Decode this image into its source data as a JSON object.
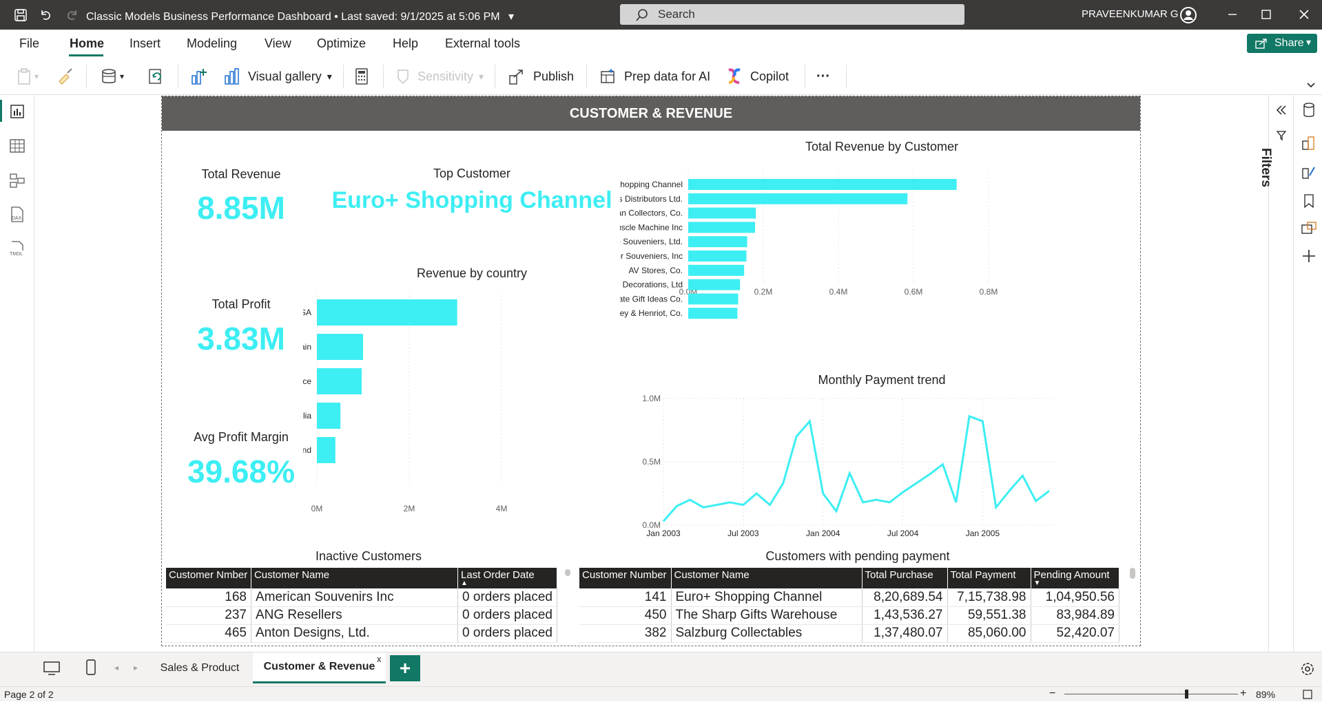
{
  "window": {
    "title": "Classic Models Business Performance Dashboard",
    "saved": "• Last saved: 9/1/2025 at 5:06 PM",
    "search_placeholder": "Search",
    "user": "PRAVEENKUMAR G"
  },
  "menu": [
    "File",
    "Home",
    "Insert",
    "Modeling",
    "View",
    "Optimize",
    "Help",
    "External tools"
  ],
  "share_label": "Share",
  "ribbon": {
    "visual_gallery": "Visual gallery",
    "sensitivity": "Sensitivity",
    "publish": "Publish",
    "prep_data": "Prep data for AI",
    "copilot": "Copilot",
    "more": "···"
  },
  "report": {
    "header": "CUSTOMER & REVENUE",
    "cards": {
      "revenue_label": "Total Revenue",
      "revenue_value": "8.85M",
      "profit_label": "Total Profit",
      "profit_value": "3.83M",
      "margin_label": "Avg Profit Margin",
      "margin_value": "39.68%",
      "top_customer_label": "Top Customer",
      "top_customer_value": "Euro+ Shopping Channel"
    },
    "country_chart_title": "Revenue by country",
    "customer_chart_title": "Total Revenue by Customer",
    "trend_chart_title": "Monthly Payment trend",
    "inactive_title": "Inactive Customers",
    "pending_title": "Customers with pending payment",
    "inactive_table": {
      "headers": [
        "Customer Nmber",
        "Customer Name",
        "Last Order Date"
      ],
      "rows": [
        [
          "168",
          "American Souvenirs Inc",
          "0 orders placed"
        ],
        [
          "237",
          "ANG Resellers",
          "0 orders placed"
        ],
        [
          "465",
          "Anton Designs, Ltd.",
          "0 orders placed"
        ]
      ]
    },
    "pending_table": {
      "headers": [
        "Customer Number",
        "Customer Name",
        "Total Purchase",
        "Total Payment",
        "Pending Amount"
      ],
      "rows": [
        [
          "141",
          "Euro+ Shopping Channel",
          "8,20,689.54",
          "7,15,738.98",
          "1,04,950.56"
        ],
        [
          "450",
          "The Sharp Gifts Warehouse",
          "1,43,536.27",
          "59,551.38",
          "83,984.89"
        ],
        [
          "382",
          "Salzburg Collectables",
          "1,37,480.07",
          "85,060.00",
          "52,420.07"
        ]
      ]
    }
  },
  "chart_data": [
    {
      "type": "bar",
      "orientation": "horizontal",
      "title": "Revenue by country",
      "categories": [
        "USA",
        "Spain",
        "France",
        "Australia",
        "New Zealand"
      ],
      "values": [
        3.04,
        1.0,
        0.97,
        0.51,
        0.4
      ],
      "unit": "M",
      "xlim": [
        0,
        4
      ],
      "xticks": [
        "0M",
        "2M",
        "4M"
      ],
      "color": "#3deef3"
    },
    {
      "type": "bar",
      "orientation": "horizontal",
      "title": "Total Revenue by Customer",
      "categories": [
        "Euro+ Shopping Channel",
        "Mini Gifts Distributors Ltd.",
        "Australian Collectors, Co.",
        "Muscle Machine Inc",
        "Dragon Souveniers, Ltd.",
        "Down Under Souveniers, Inc",
        "AV Stores, Co.",
        "Anna's Decorations, Ltd",
        "Corporate Gift Ideas Co.",
        "Saveley & Henriot, Co."
      ],
      "values": [
        0.715,
        0.584,
        0.18,
        0.178,
        0.157,
        0.155,
        0.149,
        0.138,
        0.133,
        0.131
      ],
      "unit": "M",
      "xlim": [
        0,
        0.8
      ],
      "xticks": [
        "0.0M",
        "0.2M",
        "0.4M",
        "0.6M",
        "0.8M"
      ],
      "color": "#3deef3"
    },
    {
      "type": "line",
      "title": "Monthly Payment trend",
      "x": [
        "2003-01",
        "2003-02",
        "2003-03",
        "2003-04",
        "2003-05",
        "2003-06",
        "2003-07",
        "2003-08",
        "2003-09",
        "2003-10",
        "2003-11",
        "2003-12",
        "2004-01",
        "2004-02",
        "2004-03",
        "2004-04",
        "2004-05",
        "2004-06",
        "2004-07",
        "2004-08",
        "2004-09",
        "2004-10",
        "2004-11",
        "2004-12",
        "2005-01",
        "2005-02",
        "2005-03",
        "2005-04",
        "2005-05",
        "2005-06"
      ],
      "values": [
        0.03,
        0.15,
        0.2,
        0.14,
        0.16,
        0.18,
        0.16,
        0.25,
        0.16,
        0.33,
        0.7,
        0.82,
        0.25,
        0.11,
        0.41,
        0.18,
        0.2,
        0.18,
        0.26,
        0.33,
        0.4,
        0.48,
        0.18,
        0.86,
        0.82,
        0.14,
        0.27,
        0.39,
        0.19,
        0.27
      ],
      "unit": "M",
      "ylim": [
        0,
        1.0
      ],
      "yticks": [
        "0.0M",
        "0.5M",
        "1.0M"
      ],
      "xticks": [
        "Jan 2003",
        "Jul 2003",
        "Jan 2004",
        "Jul 2004",
        "Jan 2005"
      ],
      "color": "#3deef3"
    }
  ],
  "pages": {
    "tab1": "Sales & Product",
    "tab2": "Customer & Revenue",
    "status": "Page 2 of 2",
    "zoom": "89%"
  },
  "filters_label": "Filters"
}
